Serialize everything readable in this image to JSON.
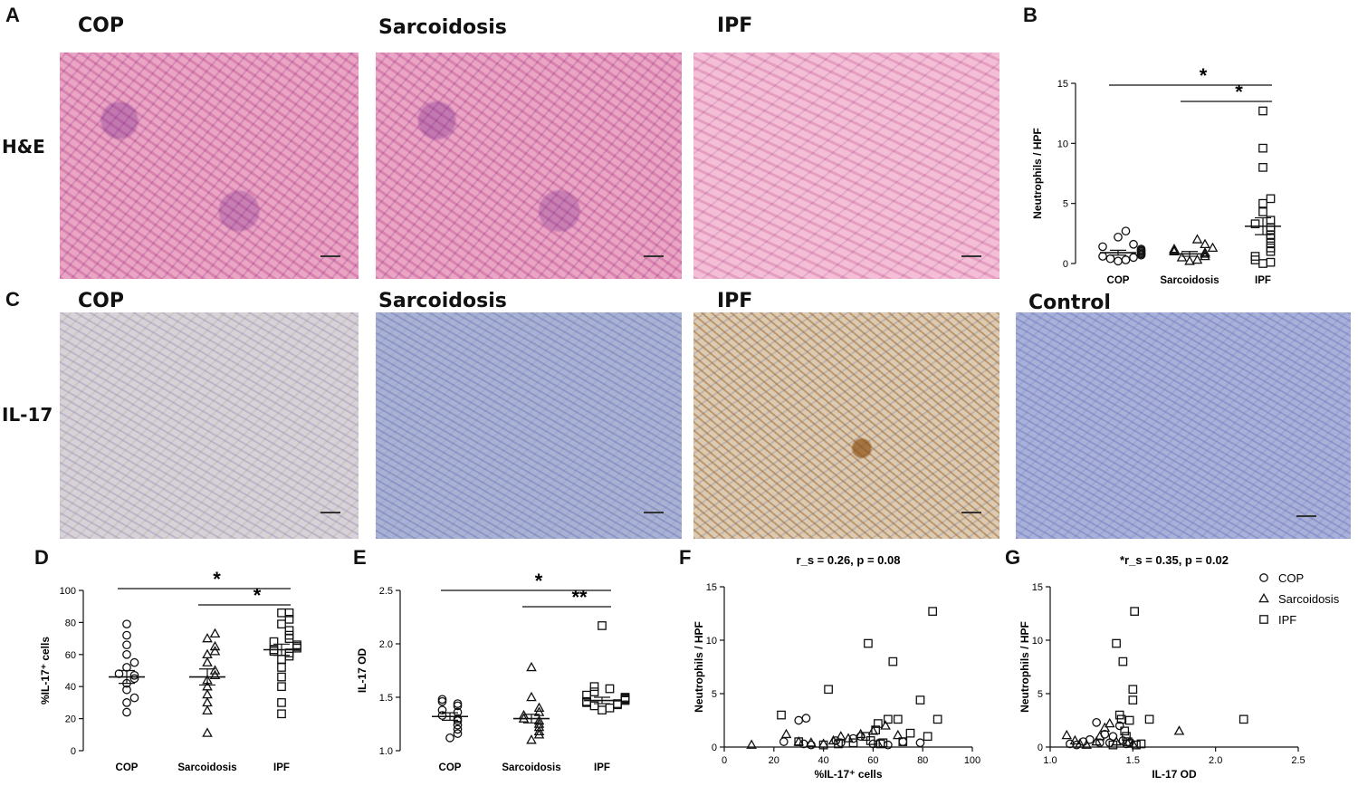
{
  "panels": {
    "A": {
      "letter": "A",
      "row_label": "H&E",
      "titles": [
        "COP",
        "Sarcoidosis",
        "IPF"
      ]
    },
    "B": {
      "letter": "B"
    },
    "C": {
      "letter": "C",
      "row_label": "IL-17",
      "titles": [
        "COP",
        "Sarcoidosis",
        "IPF",
        "Control"
      ]
    },
    "D": {
      "letter": "D"
    },
    "E": {
      "letter": "E"
    },
    "F": {
      "letter": "F"
    },
    "G": {
      "letter": "G"
    }
  },
  "chart_data": [
    {
      "id": "B",
      "type": "scatter",
      "ylabel": "Neutrophils / HPF",
      "ylim": [
        0,
        15
      ],
      "yticks": [
        0,
        5,
        10,
        15
      ],
      "categories": [
        "COP",
        "Sarcoidosis",
        "IPF"
      ],
      "markers": [
        "circle",
        "triangle",
        "square"
      ],
      "groups": [
        {
          "values": [
            0.2,
            0.3,
            0.4,
            0.5,
            0.6,
            0.7,
            0.8,
            0.9,
            1.0,
            1.1,
            1.2,
            1.4,
            1.6,
            2.2,
            2.7
          ],
          "mean": 0.9,
          "sem": 0.2
        },
        {
          "values": [
            0.2,
            0.3,
            0.5,
            0.6,
            0.8,
            0.9,
            1.0,
            1.1,
            1.2,
            1.3,
            1.6,
            2.0
          ],
          "mean": 0.8,
          "sem": 0.2
        },
        {
          "values": [
            0.0,
            0.1,
            0.3,
            0.6,
            1.0,
            1.3,
            1.7,
            2.1,
            2.4,
            2.8,
            3.0,
            3.3,
            3.6,
            4.3,
            5.0,
            5.4,
            8.0,
            9.6,
            12.7
          ],
          "mean": 3.1,
          "sem": 0.7
        }
      ],
      "significance": [
        {
          "from": 0,
          "to": 2,
          "label": "*"
        },
        {
          "from": 1,
          "to": 2,
          "label": "*"
        }
      ]
    },
    {
      "id": "D",
      "type": "scatter",
      "ylabel": "%IL-17⁺ cells",
      "ylim": [
        0,
        100
      ],
      "yticks": [
        0,
        20,
        40,
        60,
        80,
        100
      ],
      "categories": [
        "COP",
        "Sarcoidosis",
        "IPF"
      ],
      "markers": [
        "circle",
        "triangle",
        "square"
      ],
      "groups": [
        {
          "values": [
            24,
            30,
            33,
            38,
            42,
            45,
            47,
            48,
            52,
            55,
            60,
            66,
            72,
            79
          ],
          "mean": 46,
          "sem": 4
        },
        {
          "values": [
            11,
            25,
            30,
            35,
            40,
            44,
            47,
            50,
            55,
            60,
            62,
            65,
            70,
            73
          ],
          "mean": 46,
          "sem": 5
        },
        {
          "values": [
            23,
            30,
            40,
            46,
            52,
            57,
            59,
            61,
            62,
            63,
            64,
            65,
            66,
            68,
            70,
            72,
            75,
            79,
            82,
            86,
            86
          ],
          "mean": 63,
          "sem": 3.5
        }
      ],
      "significance": [
        {
          "from": 0,
          "to": 2,
          "label": "*"
        },
        {
          "from": 1,
          "to": 2,
          "label": "*"
        }
      ]
    },
    {
      "id": "E",
      "type": "scatter",
      "ylabel": "IL-17 OD",
      "ylim": [
        1.0,
        2.5
      ],
      "yticks": [
        1.0,
        1.5,
        2.0,
        2.5
      ],
      "categories": [
        "COP",
        "Sarcoidosis",
        "IPF"
      ],
      "markers": [
        "circle",
        "triangle",
        "square"
      ],
      "groups": [
        {
          "values": [
            1.12,
            1.16,
            1.2,
            1.24,
            1.28,
            1.3,
            1.33,
            1.36,
            1.38,
            1.42,
            1.44,
            1.46,
            1.48
          ],
          "mean": 1.32,
          "sem": 0.035
        },
        {
          "values": [
            1.1,
            1.15,
            1.18,
            1.22,
            1.25,
            1.28,
            1.3,
            1.33,
            1.36,
            1.4,
            1.5,
            1.78
          ],
          "mean": 1.3,
          "sem": 0.04
        },
        {
          "values": [
            1.38,
            1.4,
            1.42,
            1.43,
            1.44,
            1.45,
            1.46,
            1.47,
            1.48,
            1.49,
            1.5,
            1.52,
            1.55,
            1.58,
            1.6,
            2.17
          ],
          "mean": 1.47,
          "sem": 0.03
        }
      ],
      "significance": [
        {
          "from": 0,
          "to": 2,
          "label": "*"
        },
        {
          "from": 1,
          "to": 2,
          "label": "**"
        }
      ]
    },
    {
      "id": "F",
      "type": "scatter",
      "title": "r_s = 0.26, p = 0.08",
      "xlabel": "%IL-17⁺ cells",
      "ylabel": "Neutrophils / HPF",
      "xlim": [
        0,
        100
      ],
      "xticks": [
        0,
        20,
        40,
        60,
        80,
        100
      ],
      "ylim": [
        0,
        15
      ],
      "yticks": [
        0,
        5,
        10,
        15
      ],
      "series": [
        {
          "name": "COP",
          "marker": "circle",
          "points": [
            [
              24,
              0.5
            ],
            [
              30,
              2.5
            ],
            [
              32,
              0.3
            ],
            [
              35,
              0.2
            ],
            [
              45,
              0.6
            ],
            [
              47,
              0.4
            ],
            [
              52,
              0.8
            ],
            [
              55,
              1.0
            ],
            [
              60,
              0.3
            ],
            [
              66,
              0.2
            ],
            [
              72,
              0.5
            ],
            [
              79,
              0.4
            ],
            [
              33,
              2.7
            ]
          ]
        },
        {
          "name": "Sarcoidosis",
          "marker": "triangle",
          "points": [
            [
              11,
              0.2
            ],
            [
              25,
              1.2
            ],
            [
              30,
              0.5
            ],
            [
              35,
              0.4
            ],
            [
              40,
              0.3
            ],
            [
              44,
              0.6
            ],
            [
              47,
              1.0
            ],
            [
              50,
              0.8
            ],
            [
              55,
              1.2
            ],
            [
              60,
              1.5
            ],
            [
              62,
              0.3
            ],
            [
              65,
              2.0
            ],
            [
              70,
              1.1
            ]
          ]
        },
        {
          "name": "IPF",
          "marker": "square",
          "points": [
            [
              23,
              3.0
            ],
            [
              30,
              0.5
            ],
            [
              40,
              0.2
            ],
            [
              42,
              5.4
            ],
            [
              46,
              0.3
            ],
            [
              52,
              0.4
            ],
            [
              57,
              1.0
            ],
            [
              58,
              9.7
            ],
            [
              59,
              0.6
            ],
            [
              61,
              1.6
            ],
            [
              62,
              2.2
            ],
            [
              63,
              0.3
            ],
            [
              64,
              0.4
            ],
            [
              66,
              2.6
            ],
            [
              68,
              8.0
            ],
            [
              70,
              2.6
            ],
            [
              72,
              0.5
            ],
            [
              75,
              1.3
            ],
            [
              79,
              4.4
            ],
            [
              82,
              1.0
            ],
            [
              84,
              12.7
            ],
            [
              86,
              2.6
            ]
          ]
        }
      ]
    },
    {
      "id": "G",
      "type": "scatter",
      "title": "*r_s = 0.35, p = 0.02",
      "xlabel": "IL-17 OD",
      "ylabel": "Neutrophils / HPF",
      "xlim": [
        1.0,
        2.5
      ],
      "xticks": [
        1.0,
        1.5,
        2.0,
        2.5
      ],
      "ylim": [
        0,
        15
      ],
      "yticks": [
        0,
        5,
        10,
        15
      ],
      "legend_position": "top-right",
      "series": [
        {
          "name": "COP",
          "marker": "circle",
          "points": [
            [
              1.12,
              0.3
            ],
            [
              1.16,
              0.2
            ],
            [
              1.2,
              0.5
            ],
            [
              1.24,
              0.7
            ],
            [
              1.28,
              2.3
            ],
            [
              1.3,
              0.4
            ],
            [
              1.33,
              1.2
            ],
            [
              1.36,
              0.4
            ],
            [
              1.38,
              1.0
            ],
            [
              1.42,
              2.0
            ],
            [
              1.44,
              0.6
            ],
            [
              1.46,
              0.3
            ],
            [
              1.48,
              0.4
            ]
          ]
        },
        {
          "name": "Sarcoidosis",
          "marker": "triangle",
          "points": [
            [
              1.1,
              1.1
            ],
            [
              1.15,
              0.6
            ],
            [
              1.18,
              0.3
            ],
            [
              1.22,
              0.2
            ],
            [
              1.28,
              0.5
            ],
            [
              1.3,
              1.0
            ],
            [
              1.33,
              1.8
            ],
            [
              1.36,
              2.2
            ],
            [
              1.4,
              0.5
            ],
            [
              1.5,
              0.3
            ],
            [
              1.78,
              1.5
            ]
          ]
        },
        {
          "name": "IPF",
          "marker": "square",
          "points": [
            [
              1.38,
              0.2
            ],
            [
              1.4,
              9.7
            ],
            [
              1.42,
              3.0
            ],
            [
              1.43,
              2.6
            ],
            [
              1.44,
              8.0
            ],
            [
              1.45,
              1.5
            ],
            [
              1.46,
              1.0
            ],
            [
              1.47,
              0.5
            ],
            [
              1.48,
              2.5
            ],
            [
              1.5,
              4.4
            ],
            [
              1.5,
              5.4
            ],
            [
              1.51,
              12.7
            ],
            [
              1.52,
              0.2
            ],
            [
              1.55,
              0.3
            ],
            [
              1.6,
              2.6
            ],
            [
              2.17,
              2.6
            ]
          ]
        }
      ]
    }
  ]
}
